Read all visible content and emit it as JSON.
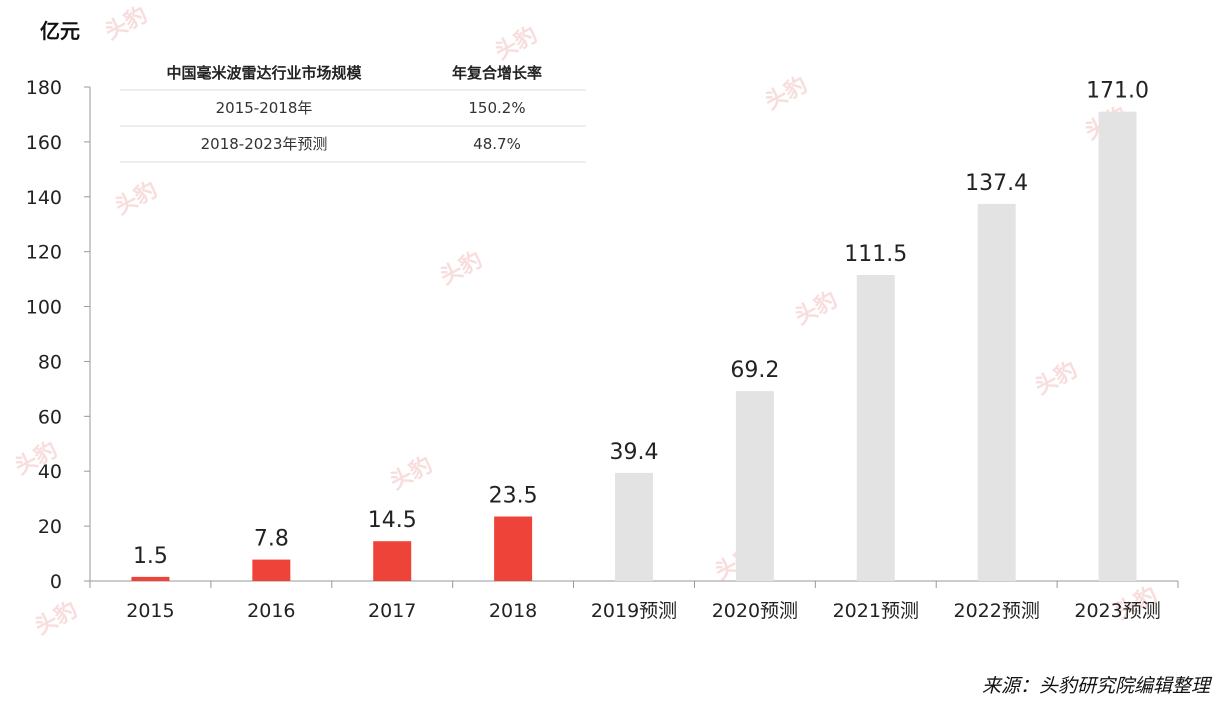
{
  "chart_data": {
    "type": "bar",
    "unit_label": "亿元",
    "categories": [
      "2015",
      "2016",
      "2017",
      "2018",
      "2019预测",
      "2020预测",
      "2021预测",
      "2022预测",
      "2023预测"
    ],
    "values": [
      1.5,
      7.8,
      14.5,
      23.5,
      39.4,
      69.2,
      111.5,
      137.4,
      171.0
    ],
    "value_labels": [
      "1.5",
      "7.8",
      "14.5",
      "23.5",
      "39.4",
      "69.2",
      "111.5",
      "137.4",
      "171.0"
    ],
    "bar_colors": [
      "#ee4338",
      "#ee4338",
      "#ee4338",
      "#ee4338",
      "#e3e3e3",
      "#e3e3e3",
      "#e3e3e3",
      "#e3e3e3",
      "#e3e3e3"
    ],
    "yticks": [
      "0",
      "20",
      "40",
      "60",
      "80",
      "100",
      "120",
      "140",
      "160",
      "180"
    ],
    "ylim": [
      0,
      180
    ],
    "grid": false,
    "legend": "none"
  },
  "inset_table": {
    "headers": [
      "中国毫米波雷达行业市场规模",
      "年复合增长率"
    ],
    "rows": [
      [
        "2015-2018年",
        "150.2%"
      ],
      [
        "2018-2023年预测",
        "48.7%"
      ]
    ]
  },
  "source_note": "来源：头豹研究院编辑整理",
  "watermark_text": "头豹"
}
